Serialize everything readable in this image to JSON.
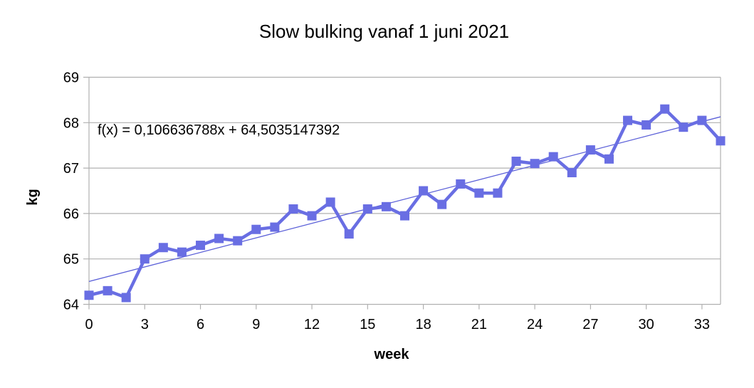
{
  "page": {
    "background": "#ffffff"
  },
  "chart_data": {
    "type": "line",
    "title": "Slow bulking vanaf 1 juni 2021",
    "xlabel": "week",
    "ylabel": "kg",
    "x": [
      0,
      1,
      2,
      3,
      4,
      5,
      6,
      7,
      8,
      9,
      10,
      11,
      12,
      13,
      14,
      15,
      16,
      17,
      18,
      19,
      20,
      21,
      22,
      23,
      24,
      25,
      26,
      27,
      28,
      29,
      30,
      31,
      32,
      33,
      34
    ],
    "values": [
      64.2,
      64.3,
      64.15,
      65.0,
      65.25,
      65.15,
      65.3,
      65.45,
      65.4,
      65.65,
      65.7,
      66.1,
      65.95,
      66.25,
      65.55,
      66.1,
      66.15,
      65.95,
      66.5,
      66.2,
      66.65,
      66.45,
      66.45,
      67.15,
      67.1,
      67.25,
      66.9,
      67.4,
      67.2,
      68.05,
      67.95,
      68.3,
      67.9,
      68.05,
      67.6
    ],
    "xlim": [
      0,
      34
    ],
    "ylim": [
      64,
      69
    ],
    "x_ticks": [
      0,
      3,
      6,
      9,
      12,
      15,
      18,
      21,
      24,
      27,
      30,
      33
    ],
    "y_ticks": [
      64,
      65,
      66,
      67,
      68,
      69
    ],
    "grid": "horizontal",
    "legend": "none",
    "marker": "square",
    "trendline": {
      "label": "f(x) = 0,106636788x + 64,5035147392",
      "slope": 0.106636788,
      "intercept": 64.5035147392
    },
    "colors": {
      "series": "#696ee3",
      "trendline": "#5a5fd8",
      "gridline": "#b0b0b0",
      "text": "#000000"
    }
  }
}
